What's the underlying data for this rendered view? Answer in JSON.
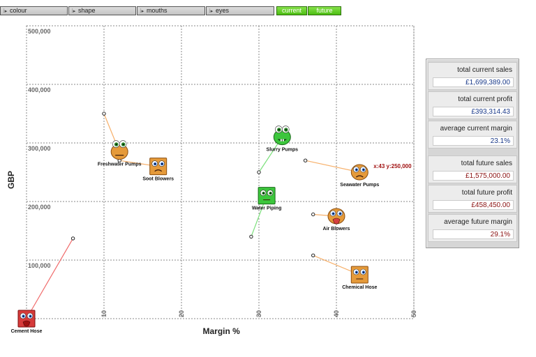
{
  "toolbar": {
    "dropdowns": [
      "colour",
      "shape",
      "mouths",
      "eyes"
    ],
    "toggles": [
      "current",
      "future"
    ]
  },
  "chart_data": {
    "type": "scatter",
    "xlabel": "Margin %",
    "ylabel": "GBP",
    "xlim": [
      0,
      50
    ],
    "ylim": [
      0,
      500000
    ],
    "xticks": [
      "10",
      "20",
      "30",
      "40",
      "50"
    ],
    "yticks": [
      "100,000",
      "200,000",
      "300,000",
      "400,000",
      "500,000"
    ],
    "grid": true,
    "hover_readout": "x:43 y:250,000",
    "points": [
      {
        "label": "Cement Hose",
        "face": "red-angry",
        "future": {
          "x": 0,
          "y": 0
        },
        "current": {
          "x": 6,
          "y": 137000
        },
        "line_color": "#f06a6a"
      },
      {
        "label": "Freshwater Pumps",
        "face": "orange-frog",
        "future": {
          "x": 12,
          "y": 285000
        },
        "current": {
          "x": 10,
          "y": 350000
        },
        "line_color": "#f7b06a"
      },
      {
        "label": "Soot Blowers",
        "face": "orange-sad",
        "future": {
          "x": 17,
          "y": 260000
        },
        "current": {
          "x": 12,
          "y": 270000
        },
        "line_color": "#f7b06a"
      },
      {
        "label": "Slurry Pumps",
        "face": "green-frog",
        "future": {
          "x": 33,
          "y": 310000
        },
        "current": {
          "x": 30,
          "y": 250000
        },
        "line_color": "#7be07b"
      },
      {
        "label": "Water Piping",
        "face": "green-square",
        "future": {
          "x": 31,
          "y": 210000
        },
        "current": {
          "x": 29,
          "y": 140000
        },
        "line_color": "#7be07b"
      },
      {
        "label": "Seawater Pumps",
        "face": "orange-worried",
        "future": {
          "x": 43,
          "y": 250000
        },
        "current": {
          "x": 36,
          "y": 270000
        },
        "line_color": "#f7b06a"
      },
      {
        "label": "Air Blowers",
        "face": "orange-tongue",
        "future": {
          "x": 40,
          "y": 175000
        },
        "current": {
          "x": 37,
          "y": 178000
        },
        "line_color": "#f7b06a"
      },
      {
        "label": "Chemical Hose",
        "face": "orange-square",
        "future": {
          "x": 43,
          "y": 75000
        },
        "current": {
          "x": 37,
          "y": 108000
        },
        "line_color": "#f7b06a"
      }
    ]
  },
  "summary": [
    {
      "label": "total current sales",
      "value": "£1,699,389.00",
      "color": "#1a3a8a"
    },
    {
      "label": "total current profit",
      "value": "£393,314.43",
      "color": "#1a3a8a"
    },
    {
      "label": "average current margin",
      "value": "23.1%",
      "color": "#1a3a8a"
    },
    {
      "label": "total future sales",
      "value": "£1,575,000.00",
      "color": "#8a1010"
    },
    {
      "label": "total future profit",
      "value": "£458,450.00",
      "color": "#8a1010"
    },
    {
      "label": "average future margin",
      "value": "29.1%",
      "color": "#8a1010"
    }
  ]
}
